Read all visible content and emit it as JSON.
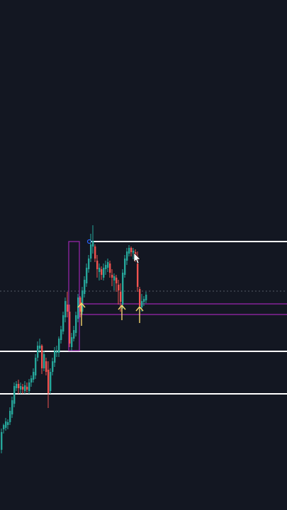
{
  "theme": {
    "background": "#131722",
    "bull_color": "#26a69a",
    "bear_color": "#ef5350",
    "level_color": "#ffffff",
    "zone_color": "#9c27b0",
    "arrow_color": "#f5d76e",
    "cursor_color": "#ffffff"
  },
  "chart": {
    "type": "candlestick",
    "price_levels": [
      {
        "name": "resistance-top",
        "style": "solid"
      },
      {
        "name": "support-mid",
        "style": "solid"
      },
      {
        "name": "support-low",
        "style": "solid"
      },
      {
        "name": "last-price",
        "style": "dotted"
      }
    ],
    "arrow_markers": [
      "up-arrow",
      "up-arrow",
      "up-arrow"
    ]
  }
}
